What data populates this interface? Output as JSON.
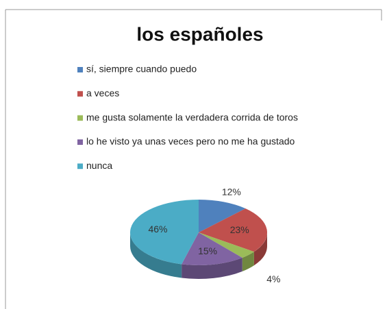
{
  "chart_data": {
    "type": "pie",
    "title": "los españoles",
    "categories": [
      "sí, siempre cuando puedo",
      "a veces",
      "me gusta solamente la verdadera corrida de toros",
      "lo he visto ya unas veces pero no me ha gustado",
      "nunca"
    ],
    "values": [
      12,
      23,
      4,
      15,
      46
    ],
    "value_labels": [
      "12%",
      "23%",
      "4%",
      "15%",
      "46%"
    ],
    "colors": [
      "#4f81bd",
      "#c0504d",
      "#9bbb59",
      "#8064a2",
      "#4bacc6"
    ],
    "legend": "top"
  }
}
